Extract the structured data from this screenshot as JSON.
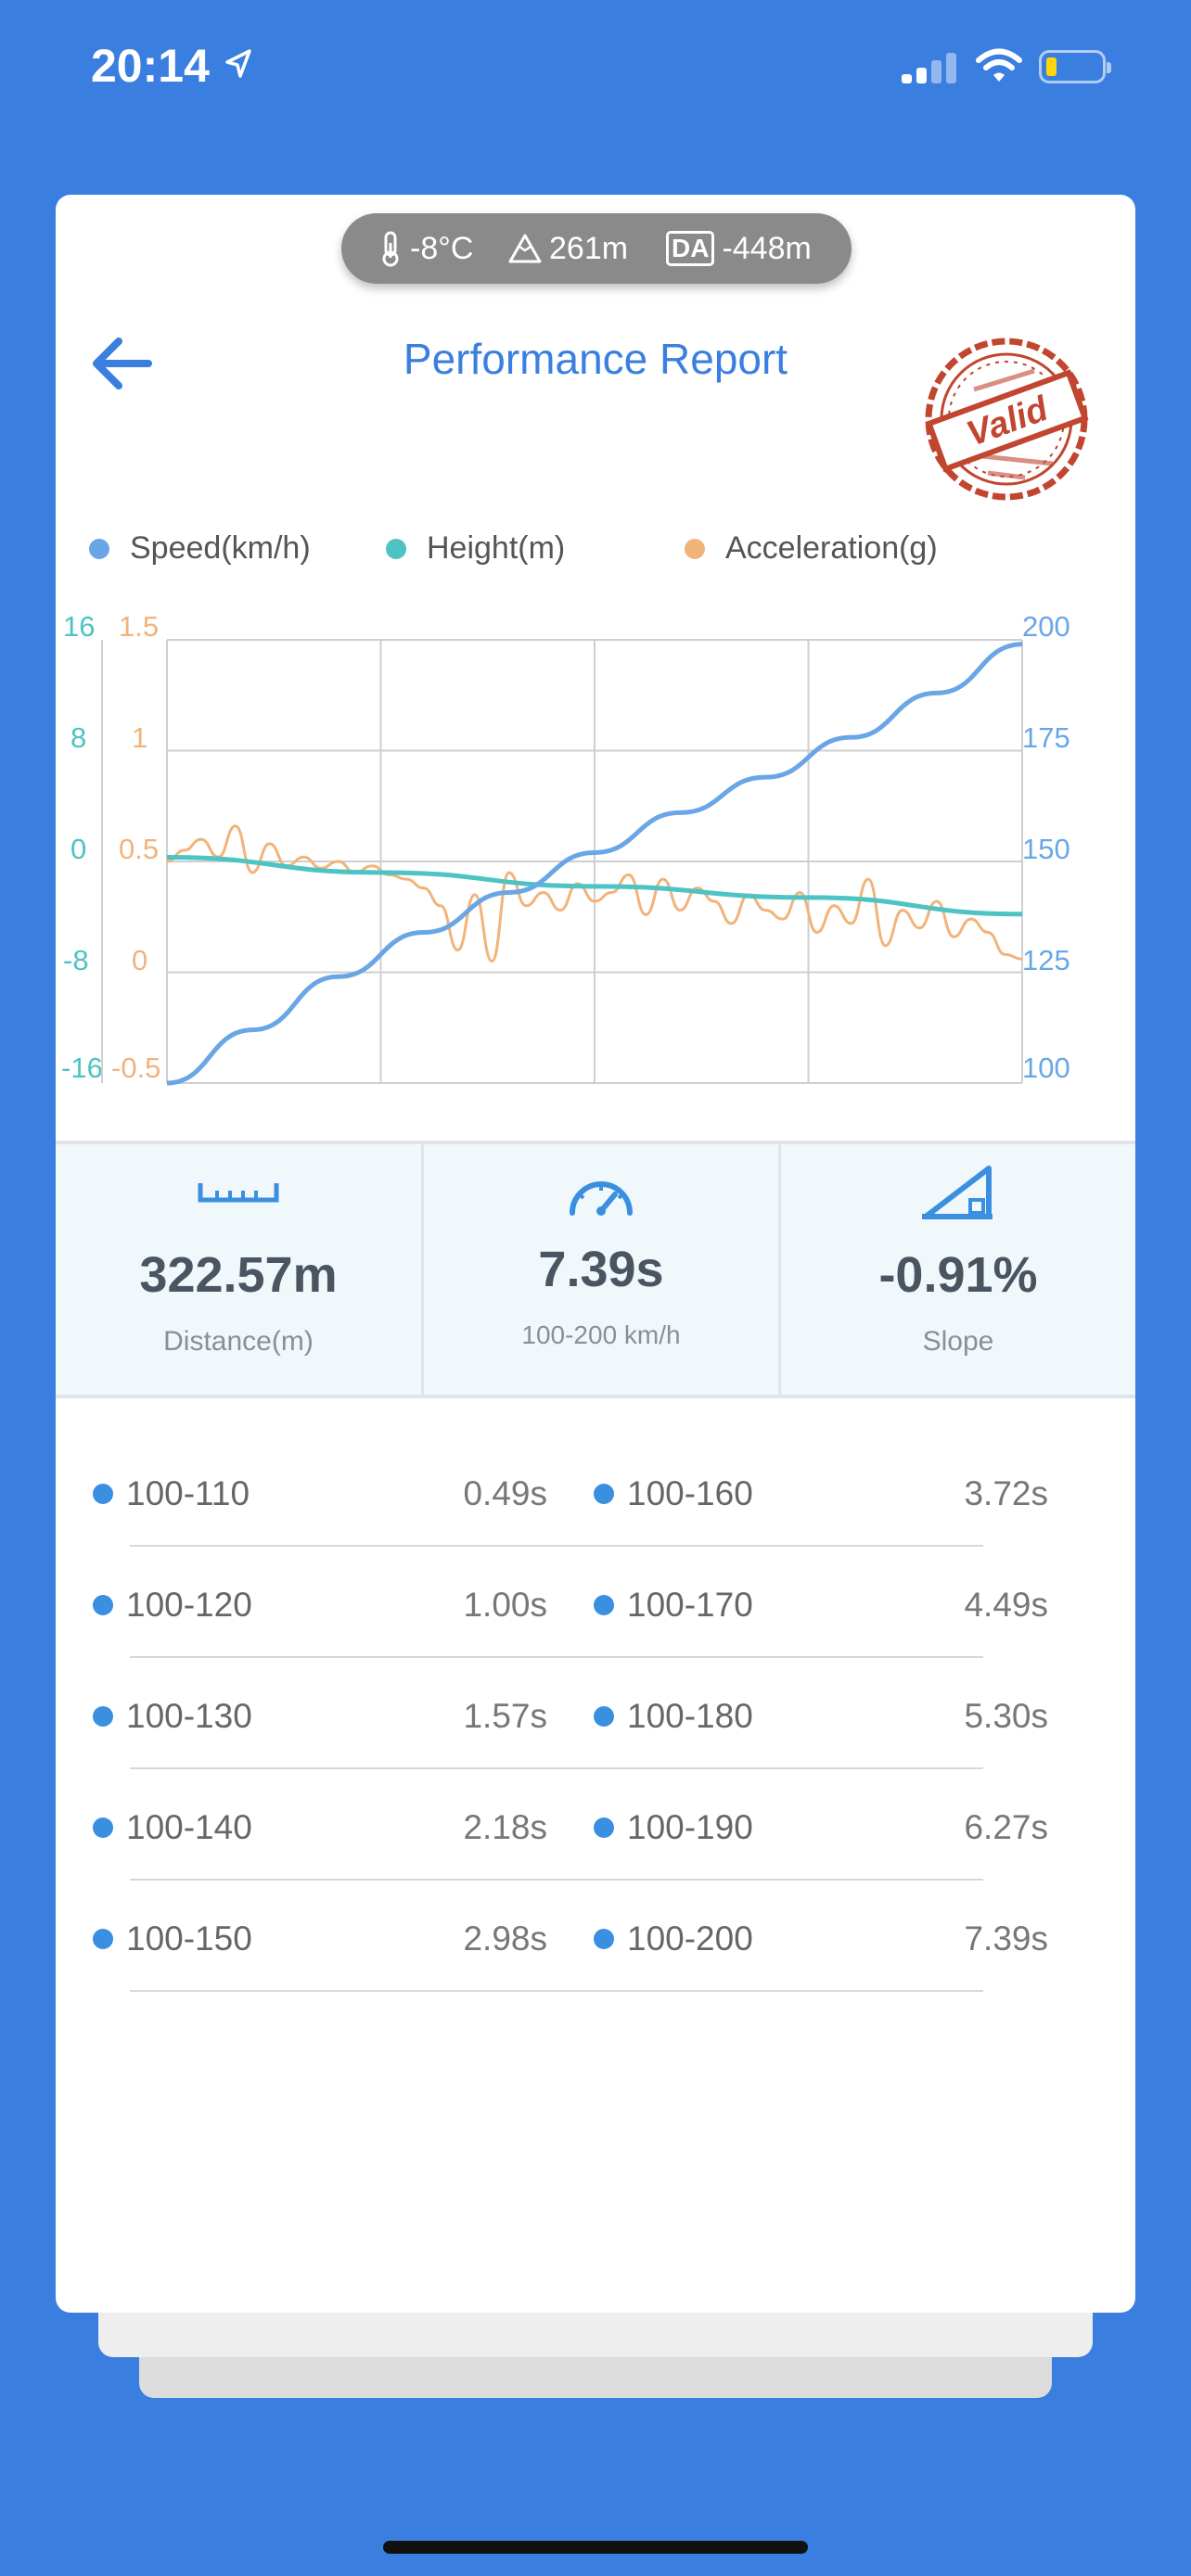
{
  "status": {
    "time": "20:14"
  },
  "env": {
    "temp": "-8°C",
    "altitude": "261m",
    "da_badge": "DA",
    "da_value": "-448m"
  },
  "header": {
    "title": "Performance Report",
    "stamp_text": "Valid"
  },
  "colors": {
    "speed": "#6aa6e6",
    "height": "#4dc3c3",
    "accel": "#f2b37a",
    "brand": "#3a7fe0"
  },
  "chart_data": {
    "type": "line",
    "legend": [
      "Speed(km/h)",
      "Height(m)",
      "Acceleration(g)"
    ],
    "axes": {
      "height_ticks": [
        "16",
        "8",
        "0",
        "-8",
        "-16"
      ],
      "accel_ticks": [
        "1.5",
        "1",
        "0.5",
        "0",
        "-0.5"
      ],
      "speed_ticks": [
        "200",
        "175",
        "150",
        "125",
        "100"
      ]
    },
    "ylim_speed": [
      100,
      200
    ],
    "ylim_height": [
      -16,
      16
    ],
    "ylim_accel": [
      -0.5,
      1.5
    ],
    "grid": true,
    "series": [
      {
        "name": "Speed(km/h)",
        "axis": "speed",
        "x": [
          0,
          0.1,
          0.2,
          0.3,
          0.4,
          0.5,
          0.6,
          0.7,
          0.8,
          0.9,
          1.0
        ],
        "values": [
          100,
          112,
          124,
          134,
          143,
          152,
          161,
          169,
          178,
          188,
          199
        ]
      },
      {
        "name": "Height(m)",
        "axis": "height",
        "x": [
          0,
          0.25,
          0.5,
          0.75,
          1.0
        ],
        "values": [
          0.3,
          -0.8,
          -1.8,
          -2.6,
          -3.8
        ]
      },
      {
        "name": "Acceleration(g)",
        "axis": "accel",
        "x": [
          0,
          0.02,
          0.04,
          0.06,
          0.08,
          0.1,
          0.12,
          0.14,
          0.16,
          0.18,
          0.2,
          0.22,
          0.24,
          0.26,
          0.28,
          0.3,
          0.32,
          0.34,
          0.36,
          0.38,
          0.4,
          0.42,
          0.44,
          0.46,
          0.48,
          0.5,
          0.52,
          0.54,
          0.56,
          0.58,
          0.6,
          0.62,
          0.64,
          0.66,
          0.68,
          0.7,
          0.72,
          0.74,
          0.76,
          0.78,
          0.8,
          0.82,
          0.84,
          0.86,
          0.88,
          0.9,
          0.92,
          0.94,
          0.96,
          0.98,
          1.0
        ],
        "values": [
          0.5,
          0.55,
          0.6,
          0.52,
          0.66,
          0.45,
          0.58,
          0.48,
          0.52,
          0.47,
          0.5,
          0.45,
          0.48,
          0.44,
          0.42,
          0.38,
          0.3,
          0.1,
          0.35,
          0.05,
          0.45,
          0.3,
          0.36,
          0.28,
          0.4,
          0.32,
          0.36,
          0.44,
          0.26,
          0.42,
          0.28,
          0.38,
          0.32,
          0.22,
          0.35,
          0.28,
          0.24,
          0.36,
          0.18,
          0.3,
          0.22,
          0.42,
          0.12,
          0.28,
          0.2,
          0.32,
          0.16,
          0.24,
          0.18,
          0.08,
          0.06
        ]
      }
    ]
  },
  "stats": [
    {
      "value": "322.57m",
      "label": "Distance(m)",
      "icon": "ruler-icon"
    },
    {
      "value": "7.39s",
      "label": "100-200 km/h",
      "icon": "speedometer-icon"
    },
    {
      "value": "-0.91%",
      "label": "Slope",
      "icon": "slope-icon"
    }
  ],
  "splits": [
    {
      "left": {
        "range": "100-110",
        "time": "0.49s"
      },
      "right": {
        "range": "100-160",
        "time": "3.72s"
      }
    },
    {
      "left": {
        "range": "100-120",
        "time": "1.00s"
      },
      "right": {
        "range": "100-170",
        "time": "4.49s"
      }
    },
    {
      "left": {
        "range": "100-130",
        "time": "1.57s"
      },
      "right": {
        "range": "100-180",
        "time": "5.30s"
      }
    },
    {
      "left": {
        "range": "100-140",
        "time": "2.18s"
      },
      "right": {
        "range": "100-190",
        "time": "6.27s"
      }
    },
    {
      "left": {
        "range": "100-150",
        "time": "2.98s"
      },
      "right": {
        "range": "100-200",
        "time": "7.39s"
      }
    }
  ]
}
